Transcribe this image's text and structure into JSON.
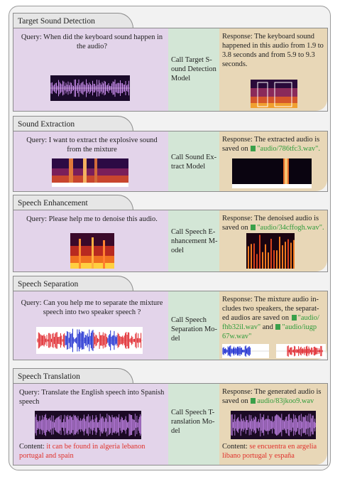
{
  "sections": [
    {
      "title": "Target Sound Detection",
      "query": "Query: When did the keyboard sound happen in the audio?",
      "model": "Call Target S-ound Detection Model",
      "response": "Response: The keyboard sound happened in this audio from 1.9 to 3.8 seconds and from 5.9 to 9.3 seconds."
    },
    {
      "title": "Sound Extraction",
      "query": "Query: I want to extract the explosive sound from the mixture",
      "model": "Call Sound Ex-tract Model",
      "response_prefix": "Response:  The extracted audio is saved on",
      "response_file": "\"audio/786tfc3.wav\"."
    },
    {
      "title": "Speech Enhancement",
      "query": "Query: Please help me to denoise this audio.",
      "model": "Call Speech E-nhancement M-odel",
      "response_prefix": "Response:  The denoised audio is saved on",
      "response_file": "\"audio/34cffogh.wav\"."
    },
    {
      "title": "Speech Separation",
      "query": "Query: Can you help me to separate the mixture speech into two speaker speech ?",
      "model": "Call Speech Separation Mo-del",
      "response_prefix": "Response: The mixture audio in-cludes two speakers, the separat-ed audios are saved on",
      "response_file1": "\"audio/ fhb32il.wav\"",
      "response_and": "and",
      "response_file2": "\"audio/iugp 67w.wav\""
    },
    {
      "title": "Speech Translation",
      "query": "Query: Translate the English speech into Spanish speech",
      "model": "Call Speech T-ranslation Mo-del",
      "response_prefix": "Response: The generated audio is saved on",
      "response_file": "audio/83jkoo9.wav",
      "content_label": "Content:",
      "query_content": "it can be found in algeria lebanon portugal and spain",
      "response_content": "se encuentra en argelia libano portugal y españa"
    }
  ],
  "colors": {
    "query_bg": "#e3d4ea",
    "model_bg": "#d3e6d6",
    "response_bg": "#e8d7b7",
    "file_green": "#2e9b3a",
    "content_red": "#e0322c"
  }
}
